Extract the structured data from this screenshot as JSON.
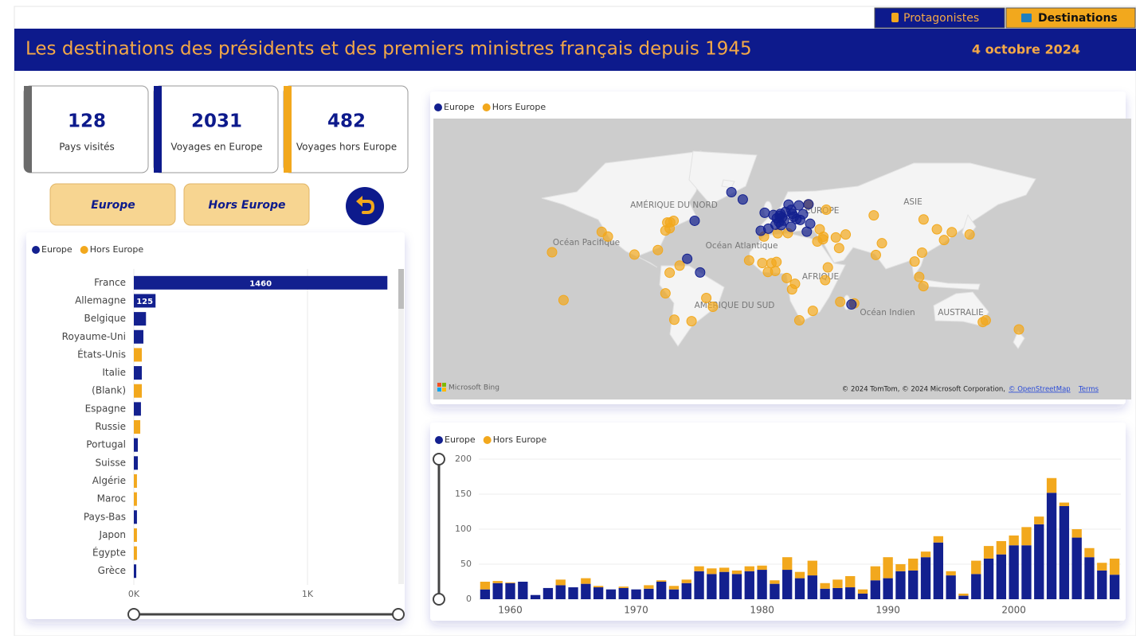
{
  "tabs": [
    "Protagonistes",
    "Destinations"
  ],
  "header": {
    "title": "Les destinations des présidents et des premiers ministres français depuis 1945",
    "date": "4 octobre 2024"
  },
  "kpis": [
    {
      "value": 128,
      "label": "Pays visités"
    },
    {
      "value": 2031,
      "label": "Voyages en Europe"
    },
    {
      "value": 482,
      "label": "Voyages hors Europe"
    }
  ],
  "filters": [
    "Europe",
    "Hors Europe"
  ],
  "chart_data": [
    {
      "type": "bar",
      "orientation": "horizontal",
      "categories": [
        "France",
        "Allemagne",
        "Belgique",
        "Royaume-Uni",
        "États-Unis",
        "Italie",
        "(Blank)",
        "Espagne",
        "Russie",
        "Portugal",
        "Suisse",
        "Algérie",
        "Maroc",
        "Pays-Bas",
        "Japon",
        "Égypte",
        "Grèce"
      ],
      "series": [
        {
          "name": "Europe",
          "color": "#13208f",
          "values": [
            1460,
            125,
            70,
            55,
            null,
            46,
            null,
            41,
            null,
            23,
            23,
            null,
            null,
            18,
            null,
            null,
            14
          ]
        },
        {
          "name": "Hors Europe",
          "color": "#f2a81d",
          "values": [
            null,
            null,
            null,
            null,
            46,
            null,
            46,
            null,
            37,
            null,
            null,
            18,
            18,
            null,
            18,
            18,
            null
          ]
        }
      ],
      "xlim": [
        0,
        1500
      ],
      "xticks": [
        {
          "value": 0,
          "label": "0K"
        },
        {
          "value": 1000,
          "label": "1K"
        }
      ],
      "grid": true,
      "data_labels": true
    },
    {
      "type": "map",
      "series": [
        {
          "name": "Europe",
          "color": "#13208f",
          "lon": [
            2.3,
            -0.1,
            13.4,
            4.4,
            12.5,
            -3.7,
            -9.1,
            7.4,
            4.9,
            23.7,
            16.4,
            21,
            14.4,
            18,
            10.7,
            24.9,
            12.6,
            -6.3,
            19,
            26.1,
            8.5,
            6.1,
            1.4,
            5.4,
            3.9,
            -21.9,
            -30,
            -56.2,
            -61.5,
            -52.3,
            55.5
          ],
          "lat": [
            48.9,
            51.5,
            52.5,
            50.8,
            41.9,
            40.4,
            38.7,
            46.9,
            52.4,
            38,
            48.2,
            52.2,
            50.1,
            59.3,
            59.9,
            60.2,
            55.7,
            53.3,
            47.5,
            44.4,
            54,
            49.6,
            43.6,
            43.3,
            45.8,
            64.1,
            70,
            46.8,
            16,
            4.9,
            -21
          ]
        },
        {
          "name": "Hors Europe",
          "color": "#f2a81d",
          "lon": [
            -77,
            -74,
            -75.7,
            -73.6,
            -71.2,
            -99.1,
            -82.4,
            -47.9,
            -43.2,
            -58.4,
            -70.7,
            -77,
            -74,
            -66.9,
            37.6,
            3,
            -6.8,
            10.2,
            31.2,
            -17.4,
            -4,
            2.1,
            -8,
            9.4,
            15.3,
            36.8,
            38.7,
            28,
            18.4,
            13.2,
            46.7,
            51.4,
            44.4,
            35.5,
            35.2,
            32.9,
            77.2,
            72.9,
            116.4,
            121.5,
            139.7,
            127,
            105.8,
            100.5,
            103.8,
            106.8,
            151.2,
            149.1,
            174.8,
            -118,
            -122.4,
            -157.8,
            -149.6,
            71.4,
            106.9,
            -1.5,
            1.2,
            47.5,
            57.5,
            24.8
          ],
          "lat": [
            38.9,
            40.7,
            45.4,
            45.5,
            46.8,
            19.4,
            23.1,
            -15.8,
            -22.9,
            -34.6,
            -33.4,
            -12,
            4.7,
            10.5,
            55.8,
            36.7,
            34,
            36.8,
            30,
            14.7,
            5.3,
            13.5,
            12.6,
            0.4,
            -4.3,
            -1.3,
            9,
            -26.2,
            -33.9,
            -8.8,
            24.7,
            35.7,
            33.3,
            33.9,
            31.8,
            39.9,
            28.6,
            19.1,
            39.9,
            31.2,
            35.7,
            37.6,
            21,
            13.8,
            1.3,
            -6.2,
            -33.9,
            -35.3,
            -41.3,
            34,
            37.8,
            21.3,
            -17.5,
            51.2,
            47.9,
            12.4,
            6.1,
            -18.9,
            -20.2,
            60.2
          ]
        }
      ],
      "labels": [
        "AMÉRIQUE DU NORD",
        "Océan Pacifique",
        "Océan Atlantique",
        "EUROPE",
        "ASIE",
        "AFRIQUE",
        "AMÉRIQUE DU SUD",
        "Océan Indien",
        "AUSTRALIE"
      ],
      "logo": "Microsoft Bing",
      "attribution": "© 2024 TomTom, © 2024 Microsoft Corporation,",
      "links": [
        "© OpenStreetMap",
        "Terms"
      ]
    },
    {
      "type": "column",
      "stacked": true,
      "x": [
        1958,
        1959,
        1960,
        1961,
        1962,
        1963,
        1964,
        1965,
        1966,
        1967,
        1968,
        1969,
        1970,
        1971,
        1972,
        1973,
        1974,
        1975,
        1976,
        1977,
        1978,
        1979,
        1980,
        1981,
        1982,
        1983,
        1984,
        1985,
        1986,
        1987,
        1988,
        1989,
        1990,
        1991,
        1992,
        1993,
        1994,
        1995,
        1996,
        1997,
        1998,
        1999,
        2000,
        2001,
        2002,
        2003,
        2004,
        2005,
        2006,
        2007,
        2008
      ],
      "series": [
        {
          "name": "Europe",
          "color": "#13208f",
          "values": [
            14,
            23,
            23,
            25,
            6,
            16,
            20,
            17,
            22,
            17,
            14,
            16,
            14,
            15,
            25,
            14,
            23,
            40,
            36,
            39,
            36,
            40,
            42,
            22,
            42,
            30,
            34,
            15,
            16,
            17,
            8,
            27,
            30,
            40,
            41,
            60,
            81,
            34,
            5,
            36,
            58,
            64,
            77,
            77,
            107,
            152,
            133,
            88,
            60,
            41,
            35
          ]
        },
        {
          "name": "Hors Europe",
          "color": "#f2a81d",
          "values": [
            11,
            3,
            1,
            0,
            0,
            0,
            8,
            0,
            8,
            2,
            0,
            2,
            0,
            5,
            2,
            5,
            5,
            7,
            8,
            6,
            5,
            7,
            6,
            5,
            18,
            9,
            21,
            8,
            12,
            16,
            6,
            20,
            30,
            10,
            17,
            8,
            9,
            6,
            3,
            19,
            18,
            19,
            14,
            26,
            11,
            21,
            5,
            12,
            13,
            11,
            23
          ]
        }
      ],
      "xlim": [
        1957.5,
        2008.5
      ],
      "xticks": [
        1960,
        1970,
        1980,
        1990,
        2000
      ],
      "ylim": [
        0,
        200
      ],
      "yticks": [
        0,
        50,
        100,
        150,
        200
      ],
      "grid": true
    }
  ]
}
